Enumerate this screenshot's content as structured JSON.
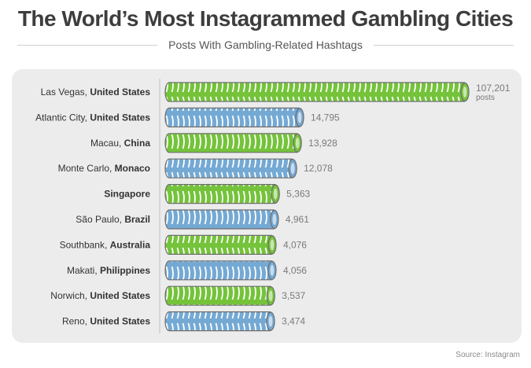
{
  "header": {
    "title": "The World’s Most Instagrammed Gambling Cities",
    "subtitle": "Posts With Gambling-Related Hashtags"
  },
  "footer": {
    "source": "Source: Instagram"
  },
  "colors": {
    "green": "#74c33a",
    "blue": "#74a9d4",
    "panel": "#ececec"
  },
  "chart_data": {
    "type": "bar",
    "orientation": "horizontal",
    "title": "The World’s Most Instagrammed Gambling Cities",
    "subtitle": "Posts With Gambling-Related Hashtags",
    "value_unit": "posts",
    "grid": false,
    "bars": [
      {
        "city": "Las Vegas, ",
        "country": "United States",
        "value": 107201,
        "label": "107,201",
        "color": "green"
      },
      {
        "city": "Atlantic City, ",
        "country": "United States",
        "value": 14795,
        "label": "14,795",
        "color": "blue"
      },
      {
        "city": "Macau, ",
        "country": "China",
        "value": 13928,
        "label": "13,928",
        "color": "green"
      },
      {
        "city": "Monte Carlo, ",
        "country": "Monaco",
        "value": 12078,
        "label": "12,078",
        "color": "blue"
      },
      {
        "city": "",
        "country": "Singapore",
        "value": 5363,
        "label": "5,363",
        "color": "green"
      },
      {
        "city": "São Paulo, ",
        "country": "Brazil",
        "value": 4961,
        "label": "4,961",
        "color": "blue"
      },
      {
        "city": "Southbank, ",
        "country": "Australia",
        "value": 4076,
        "label": "4,076",
        "color": "green"
      },
      {
        "city": "Makati, ",
        "country": "Philippines",
        "value": 4056,
        "label": "4,056",
        "color": "blue"
      },
      {
        "city": "Norwich, ",
        "country": "United States",
        "value": 3537,
        "label": "3,537",
        "color": "green"
      },
      {
        "city": "Reno, ",
        "country": "United States",
        "value": 3474,
        "label": "3,474",
        "color": "blue"
      }
    ]
  }
}
